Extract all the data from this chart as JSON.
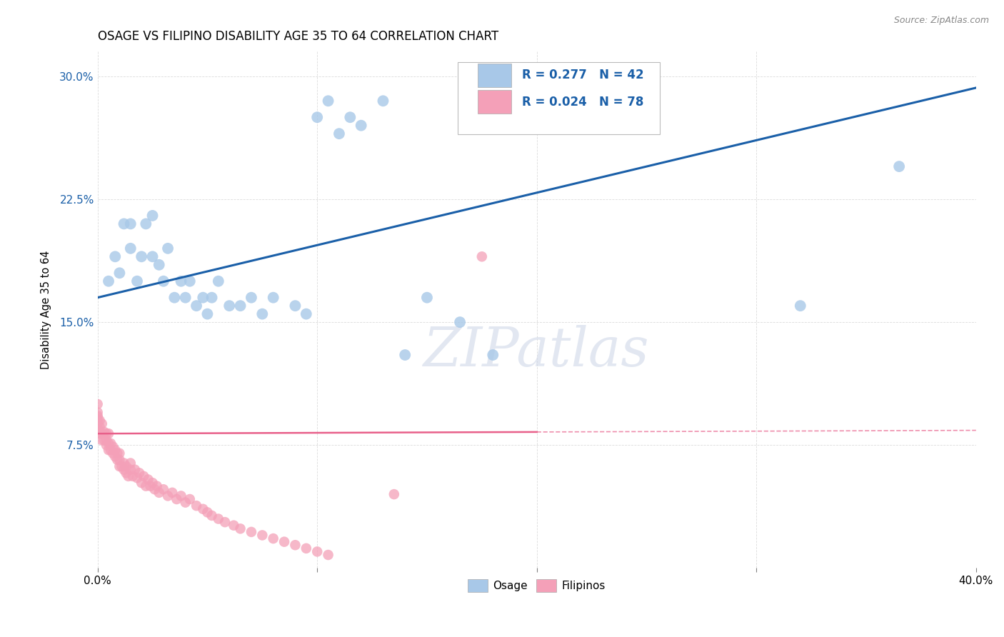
{
  "title": "OSAGE VS FILIPINO DISABILITY AGE 35 TO 64 CORRELATION CHART",
  "source": "Source: ZipAtlas.com",
  "ylabel": "Disability Age 35 to 64",
  "xlim": [
    0.0,
    0.4
  ],
  "ylim": [
    0.0,
    0.315
  ],
  "xticks": [
    0.0,
    0.1,
    0.2,
    0.3,
    0.4
  ],
  "xtick_labels": [
    "0.0%",
    "",
    "",
    "",
    "40.0%"
  ],
  "yticks": [
    0.075,
    0.15,
    0.225,
    0.3
  ],
  "ytick_labels": [
    "7.5%",
    "15.0%",
    "22.5%",
    "30.0%"
  ],
  "osage_color": "#a8c8e8",
  "filipino_color": "#f4a0b8",
  "osage_line_color": "#1a5fa8",
  "filipino_line_color": "#e8608a",
  "filipino_line_intercept": 0.082,
  "filipino_line_slope": 0.005,
  "osage_line_intercept": 0.165,
  "osage_line_slope": 0.32,
  "watermark": "ZIPatlas",
  "osage_x": [
    0.005,
    0.008,
    0.01,
    0.012,
    0.015,
    0.015,
    0.018,
    0.02,
    0.022,
    0.025,
    0.025,
    0.028,
    0.03,
    0.032,
    0.035,
    0.038,
    0.04,
    0.042,
    0.045,
    0.048,
    0.05,
    0.052,
    0.055,
    0.06,
    0.065,
    0.07,
    0.075,
    0.08,
    0.09,
    0.095,
    0.1,
    0.105,
    0.11,
    0.115,
    0.12,
    0.13,
    0.14,
    0.15,
    0.165,
    0.18,
    0.32,
    0.365
  ],
  "osage_y": [
    0.175,
    0.19,
    0.18,
    0.21,
    0.195,
    0.21,
    0.175,
    0.19,
    0.21,
    0.19,
    0.215,
    0.185,
    0.175,
    0.195,
    0.165,
    0.175,
    0.165,
    0.175,
    0.16,
    0.165,
    0.155,
    0.165,
    0.175,
    0.16,
    0.16,
    0.165,
    0.155,
    0.165,
    0.16,
    0.155,
    0.275,
    0.285,
    0.265,
    0.275,
    0.27,
    0.285,
    0.13,
    0.165,
    0.15,
    0.13,
    0.16,
    0.245
  ],
  "filipino_x": [
    0.0,
    0.0,
    0.0,
    0.0,
    0.0,
    0.0,
    0.0,
    0.001,
    0.001,
    0.001,
    0.002,
    0.002,
    0.002,
    0.003,
    0.003,
    0.004,
    0.004,
    0.004,
    0.005,
    0.005,
    0.005,
    0.006,
    0.006,
    0.007,
    0.007,
    0.008,
    0.008,
    0.009,
    0.009,
    0.01,
    0.01,
    0.01,
    0.011,
    0.012,
    0.012,
    0.013,
    0.013,
    0.014,
    0.015,
    0.015,
    0.016,
    0.017,
    0.018,
    0.019,
    0.02,
    0.021,
    0.022,
    0.023,
    0.024,
    0.025,
    0.026,
    0.027,
    0.028,
    0.03,
    0.032,
    0.034,
    0.036,
    0.038,
    0.04,
    0.042,
    0.045,
    0.048,
    0.05,
    0.052,
    0.055,
    0.058,
    0.062,
    0.065,
    0.07,
    0.075,
    0.08,
    0.085,
    0.09,
    0.095,
    0.1,
    0.105,
    0.135,
    0.175
  ],
  "filipino_y": [
    0.085,
    0.088,
    0.09,
    0.092,
    0.093,
    0.095,
    0.1,
    0.082,
    0.086,
    0.09,
    0.078,
    0.082,
    0.088,
    0.078,
    0.083,
    0.075,
    0.078,
    0.082,
    0.072,
    0.076,
    0.082,
    0.072,
    0.076,
    0.07,
    0.074,
    0.068,
    0.072,
    0.066,
    0.07,
    0.062,
    0.066,
    0.07,
    0.062,
    0.06,
    0.064,
    0.058,
    0.062,
    0.056,
    0.06,
    0.064,
    0.056,
    0.06,
    0.055,
    0.058,
    0.052,
    0.056,
    0.05,
    0.054,
    0.05,
    0.052,
    0.048,
    0.05,
    0.046,
    0.048,
    0.044,
    0.046,
    0.042,
    0.044,
    0.04,
    0.042,
    0.038,
    0.036,
    0.034,
    0.032,
    0.03,
    0.028,
    0.026,
    0.024,
    0.022,
    0.02,
    0.018,
    0.016,
    0.014,
    0.012,
    0.01,
    0.008,
    0.045,
    0.19
  ],
  "background_color": "#ffffff",
  "grid_color": "#cccccc",
  "title_fontsize": 12,
  "tick_fontsize": 11
}
